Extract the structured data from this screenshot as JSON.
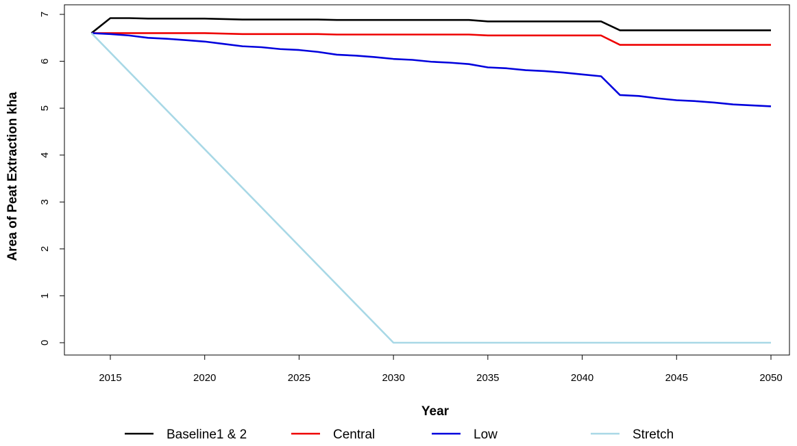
{
  "chart_data": {
    "type": "line",
    "title": "",
    "xlabel": "Year",
    "ylabel": "Area of Peat Extraction kha",
    "xlim": [
      2014,
      2050
    ],
    "ylim": [
      0,
      7
    ],
    "xticks": [
      2015,
      2020,
      2025,
      2030,
      2035,
      2040,
      2045,
      2050
    ],
    "yticks": [
      0,
      1,
      2,
      3,
      4,
      5,
      6,
      7
    ],
    "grid": false,
    "legend_position": "bottom",
    "series": [
      {
        "name": "Baseline1 & 2",
        "color": "#000000",
        "points": [
          [
            2014,
            6.6
          ],
          [
            2015,
            6.92
          ],
          [
            2016,
            6.92
          ],
          [
            2017,
            6.91
          ],
          [
            2020,
            6.91
          ],
          [
            2022,
            6.89
          ],
          [
            2026,
            6.89
          ],
          [
            2027,
            6.88
          ],
          [
            2034,
            6.88
          ],
          [
            2035,
            6.85
          ],
          [
            2041,
            6.85
          ],
          [
            2042,
            6.66
          ],
          [
            2050,
            6.66
          ]
        ]
      },
      {
        "name": "Central",
        "color": "#ee0000",
        "points": [
          [
            2014,
            6.6
          ],
          [
            2017,
            6.6
          ],
          [
            2020,
            6.6
          ],
          [
            2022,
            6.58
          ],
          [
            2026,
            6.58
          ],
          [
            2027,
            6.57
          ],
          [
            2034,
            6.57
          ],
          [
            2035,
            6.55
          ],
          [
            2041,
            6.55
          ],
          [
            2042,
            6.35
          ],
          [
            2050,
            6.35
          ]
        ]
      },
      {
        "name": "Low",
        "color": "#0000dd",
        "points": [
          [
            2014,
            6.6
          ],
          [
            2015,
            6.58
          ],
          [
            2016,
            6.55
          ],
          [
            2017,
            6.5
          ],
          [
            2018,
            6.48
          ],
          [
            2019,
            6.45
          ],
          [
            2020,
            6.42
          ],
          [
            2021,
            6.37
          ],
          [
            2022,
            6.32
          ],
          [
            2023,
            6.3
          ],
          [
            2024,
            6.26
          ],
          [
            2025,
            6.24
          ],
          [
            2026,
            6.2
          ],
          [
            2027,
            6.14
          ],
          [
            2028,
            6.12
          ],
          [
            2029,
            6.09
          ],
          [
            2030,
            6.05
          ],
          [
            2031,
            6.03
          ],
          [
            2032,
            5.99
          ],
          [
            2033,
            5.97
          ],
          [
            2034,
            5.94
          ],
          [
            2035,
            5.87
          ],
          [
            2036,
            5.85
          ],
          [
            2037,
            5.81
          ],
          [
            2038,
            5.79
          ],
          [
            2039,
            5.76
          ],
          [
            2040,
            5.72
          ],
          [
            2041,
            5.68
          ],
          [
            2042,
            5.28
          ],
          [
            2043,
            5.26
          ],
          [
            2044,
            5.21
          ],
          [
            2045,
            5.17
          ],
          [
            2046,
            5.15
          ],
          [
            2047,
            5.12
          ],
          [
            2048,
            5.08
          ],
          [
            2049,
            5.06
          ],
          [
            2050,
            5.04
          ]
        ]
      },
      {
        "name": "Stretch",
        "color": "#a8d8e6",
        "points": [
          [
            2014,
            6.6
          ],
          [
            2030,
            0
          ],
          [
            2050,
            0
          ]
        ]
      }
    ]
  }
}
